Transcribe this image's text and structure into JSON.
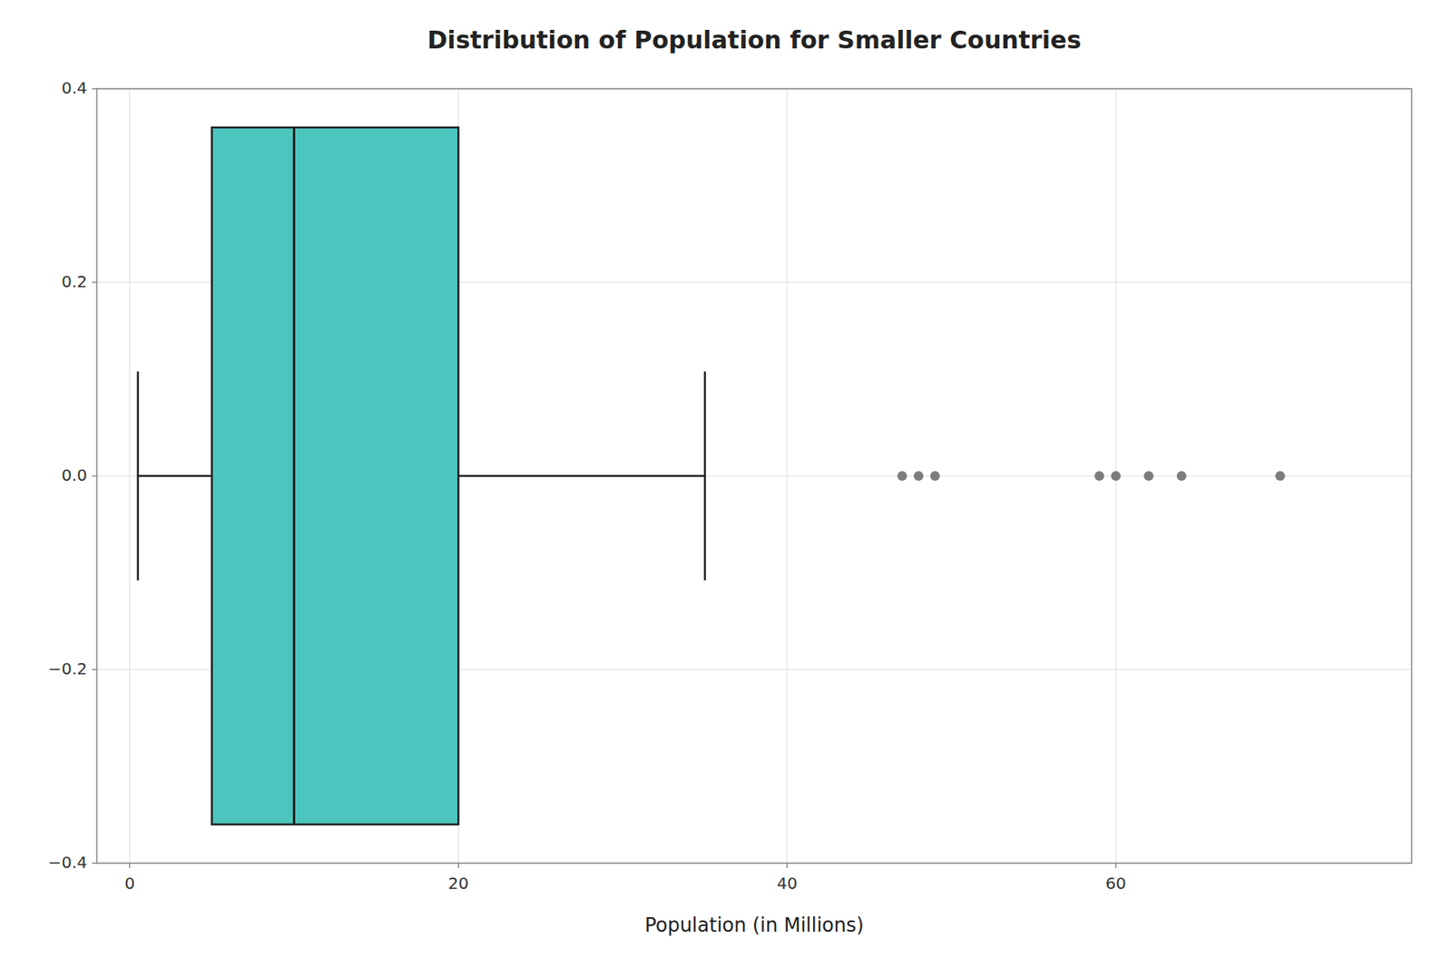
{
  "chart_data": {
    "type": "box",
    "orientation": "horizontal",
    "title": "Distribution of Population for Smaller Countries",
    "xlabel": "Population (in Millions)",
    "xlim": [
      -2,
      78
    ],
    "xticks": [
      0,
      20,
      40,
      60
    ],
    "ylim": [
      -0.4,
      0.4
    ],
    "yticks": [
      {
        "value": -0.4,
        "label": "−0.4"
      },
      {
        "value": -0.2,
        "label": "−0.2"
      },
      {
        "value": 0.0,
        "label": "0.0"
      },
      0.2,
      0.4
    ],
    "grid": true,
    "color": "#4DC5BF",
    "q1": 5,
    "median": 10,
    "q3": 20,
    "whisker_low": 0.5,
    "whisker_high": 35,
    "outliers": [
      47,
      48,
      49,
      59,
      60,
      62,
      64,
      70
    ]
  }
}
